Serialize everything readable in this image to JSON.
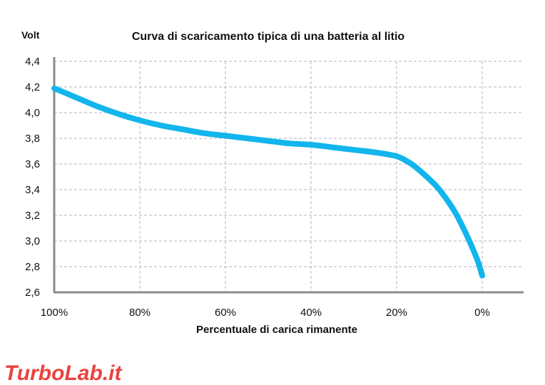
{
  "chart_data": {
    "type": "line",
    "title": "Curva di scaricamento tipica di una batteria al litio",
    "ylabel": "Volt",
    "xlabel": "Percentuale di carica rimanente",
    "x_reversed": true,
    "xlim": [
      0,
      100
    ],
    "ylim": [
      2.6,
      4.4
    ],
    "grid": true,
    "x_ticks": [
      {
        "value": 100,
        "label": "100%"
      },
      {
        "value": 80,
        "label": "80%"
      },
      {
        "value": 60,
        "label": "60%"
      },
      {
        "value": 40,
        "label": "40%"
      },
      {
        "value": 20,
        "label": "20%"
      },
      {
        "value": 0,
        "label": "0%"
      }
    ],
    "y_ticks": [
      {
        "value": 2.6,
        "label": "2,6"
      },
      {
        "value": 2.8,
        "label": "2,8"
      },
      {
        "value": 3.0,
        "label": "3,0"
      },
      {
        "value": 3.2,
        "label": "3,2"
      },
      {
        "value": 3.4,
        "label": "3,4"
      },
      {
        "value": 3.6,
        "label": "3,6"
      },
      {
        "value": 3.8,
        "label": "3,8"
      },
      {
        "value": 4.0,
        "label": "4,0"
      },
      {
        "value": 4.2,
        "label": "4,2"
      },
      {
        "value": 4.4,
        "label": "4,4"
      }
    ],
    "series": [
      {
        "color": "#12b5ec",
        "x": [
          100,
          95,
          90,
          85,
          80,
          75,
          70,
          65,
          60,
          55,
          50,
          45,
          40,
          35,
          30,
          25,
          20,
          17,
          15,
          12,
          10,
          7,
          5,
          3,
          1,
          0
        ],
        "y": [
          4.19,
          4.12,
          4.05,
          3.99,
          3.94,
          3.9,
          3.87,
          3.84,
          3.82,
          3.8,
          3.78,
          3.76,
          3.75,
          3.73,
          3.71,
          3.69,
          3.66,
          3.61,
          3.56,
          3.47,
          3.4,
          3.26,
          3.14,
          3.0,
          2.84,
          2.73
        ]
      }
    ]
  },
  "watermark": {
    "part1": "Turbo",
    "part2": "Lab.it",
    "color": "#e8433f"
  }
}
